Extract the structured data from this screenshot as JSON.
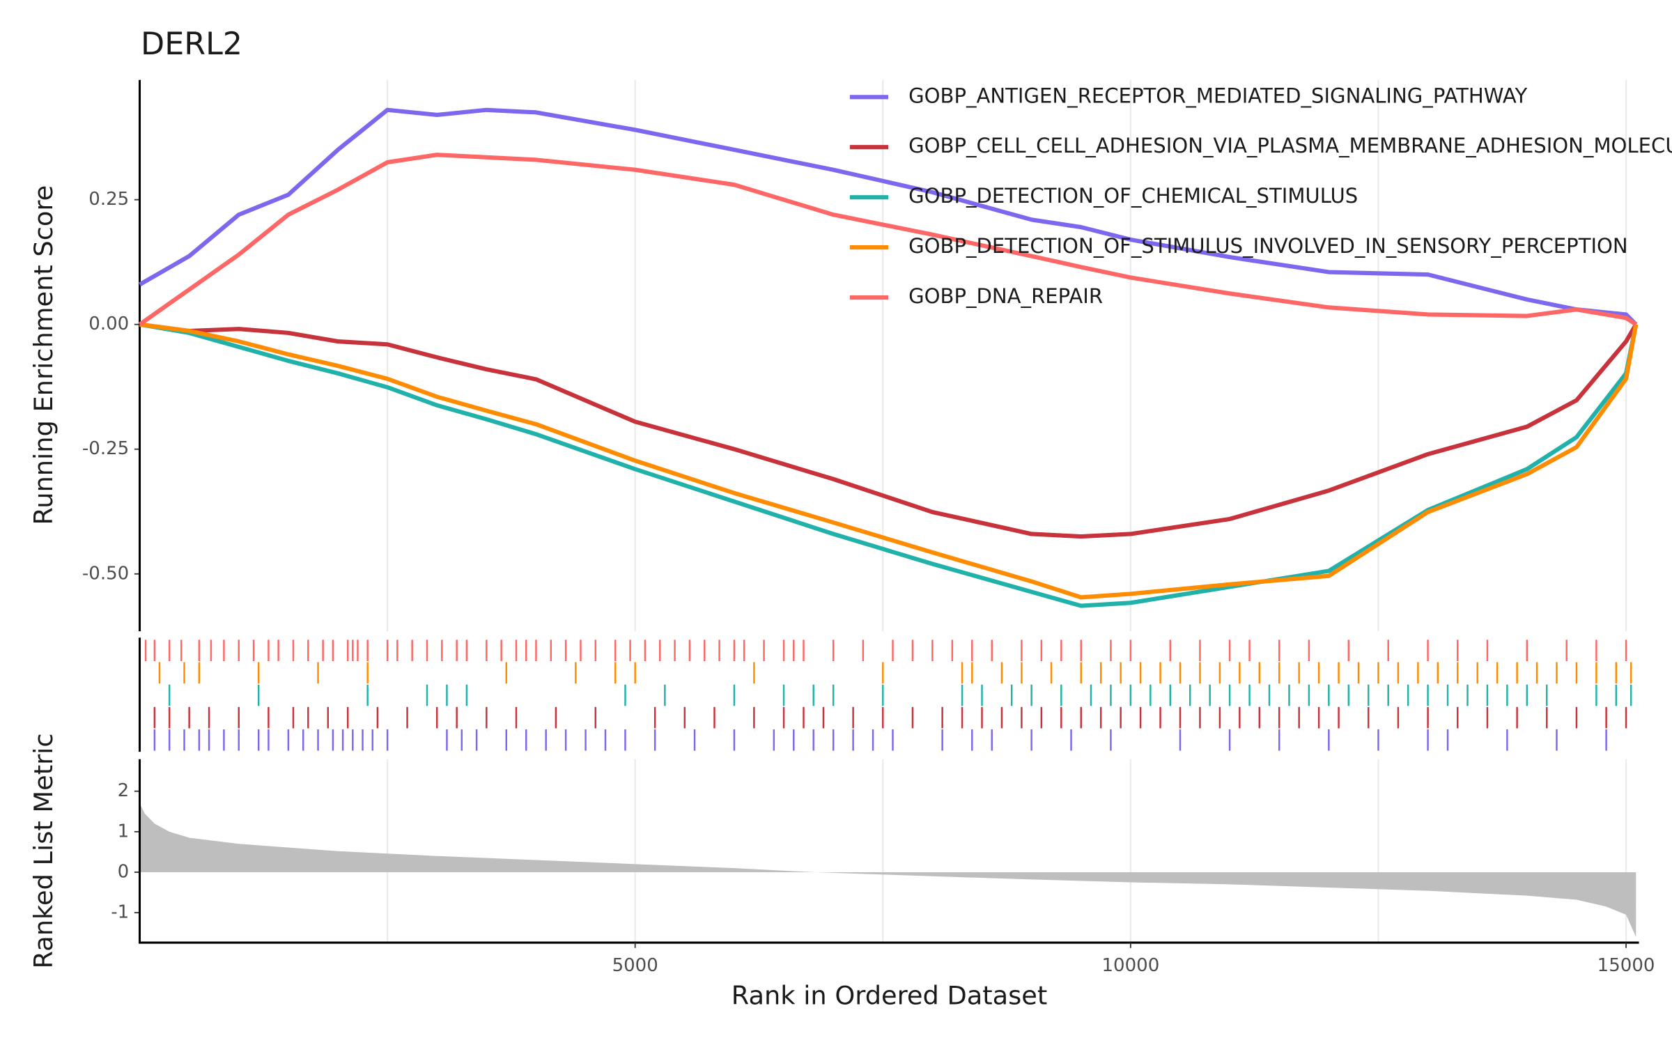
{
  "chart_data": [
    {
      "type": "line",
      "title": "DERL2",
      "ylabel": "Running Enrichment Score",
      "x": [
        0,
        500,
        1000,
        1500,
        2000,
        2500,
        3000,
        3500,
        4000,
        5000,
        6000,
        7000,
        8000,
        9000,
        9500,
        10000,
        11000,
        12000,
        13000,
        14000,
        14500,
        15000,
        15100
      ],
      "series": [
        {
          "name": "GOBP_ANTIGEN_RECEPTOR_MEDIATED_SIGNALING_PATHWAY",
          "color": "#7b68ee",
          "values": [
            0.08,
            0.137,
            0.22,
            0.26,
            0.35,
            0.43,
            0.42,
            0.43,
            0.425,
            0.39,
            0.35,
            0.31,
            0.265,
            0.21,
            0.195,
            0.17,
            0.135,
            0.105,
            0.1,
            0.05,
            0.03,
            0.02,
            0
          ]
        },
        {
          "name": "GOBP_CELL_CELL_ADHESION_VIA_PLASMA_MEMBRANE_ADHESION_MOLECULES",
          "color": "#c8323a",
          "values": [
            0,
            -0.013,
            -0.009,
            -0.017,
            -0.034,
            -0.04,
            -0.066,
            -0.09,
            -0.11,
            -0.195,
            -0.25,
            -0.31,
            -0.376,
            -0.42,
            -0.425,
            -0.42,
            -0.39,
            -0.333,
            -0.26,
            -0.205,
            -0.152,
            -0.034,
            0
          ]
        },
        {
          "name": "GOBP_DETECTION_OF_CHEMICAL_STIMULUS",
          "color": "#20b2aa",
          "values": [
            0,
            -0.017,
            -0.045,
            -0.073,
            -0.098,
            -0.126,
            -0.162,
            -0.19,
            -0.22,
            -0.29,
            -0.355,
            -0.42,
            -0.48,
            -0.536,
            -0.564,
            -0.558,
            -0.526,
            -0.494,
            -0.372,
            -0.29,
            -0.226,
            -0.098,
            0
          ]
        },
        {
          "name": "GOBP_DETECTION_OF_STIMULUS_INVOLVED_IN_SENSORY_PERCEPTION",
          "color": "#ff8c00",
          "values": [
            0,
            -0.013,
            -0.034,
            -0.06,
            -0.083,
            -0.109,
            -0.145,
            -0.173,
            -0.2,
            -0.273,
            -0.338,
            -0.397,
            -0.457,
            -0.515,
            -0.547,
            -0.54,
            -0.521,
            -0.504,
            -0.376,
            -0.3,
            -0.246,
            -0.109,
            0
          ]
        },
        {
          "name": "GOBP_DNA_REPAIR",
          "color": "#ff6666",
          "values": [
            0,
            0.07,
            0.14,
            0.22,
            0.27,
            0.325,
            0.34,
            0.335,
            0.33,
            0.31,
            0.28,
            0.22,
            0.18,
            0.137,
            0.115,
            0.094,
            0.062,
            0.034,
            0.02,
            0.017,
            0.03,
            0.013,
            0
          ]
        }
      ],
      "xlim": [
        0,
        15130
      ],
      "ylim": [
        -0.615,
        0.49
      ],
      "yticks": [
        0.25,
        {
          "value": 0,
          "label": "0.00"
        },
        -0.25,
        {
          "value": -0.5,
          "label": "-0.50"
        }
      ],
      "x_gridlines": [
        2500,
        5000,
        7500,
        10000,
        12500,
        15000
      ],
      "legend": "top-right"
    },
    {
      "type": "rug",
      "xlim": [
        0,
        15130
      ],
      "rows": [
        {
          "color": "#ff6666",
          "x": [
            60,
            150,
            300,
            420,
            600,
            720,
            850,
            1000,
            1150,
            1300,
            1400,
            1550,
            1700,
            1850,
            1950,
            2100,
            2150,
            2200,
            2300,
            2500,
            2600,
            2750,
            2900,
            3050,
            3200,
            3300,
            3500,
            3650,
            3800,
            3900,
            4000,
            4150,
            4300,
            4450,
            4600,
            4800,
            4950,
            5100,
            5250,
            5400,
            5550,
            5700,
            5850,
            6000,
            6100,
            6300,
            6500,
            6600,
            6700,
            7000,
            7300,
            7600,
            7800,
            8000,
            8200,
            8400,
            8600,
            8900,
            9100,
            9300,
            9500,
            9800,
            10000,
            10400,
            10700,
            11000,
            11200,
            11500,
            11800,
            12200,
            12600,
            13000,
            13300,
            13600,
            14000,
            14400,
            14700,
            15000
          ]
        },
        {
          "color": "#ff8c00",
          "x": [
            200,
            450,
            600,
            1200,
            1800,
            2300,
            3700,
            4400,
            4800,
            5000,
            6200,
            7500,
            8300,
            8400,
            8700,
            8900,
            9200,
            9500,
            9700,
            9900,
            10100,
            10300,
            10500,
            10700,
            10900,
            11100,
            11300,
            11500,
            11700,
            11900,
            12100,
            12300,
            12500,
            12700,
            12900,
            13100,
            13300,
            13500,
            13700,
            13900,
            14100,
            14300,
            14500,
            14700,
            14900,
            15050
          ]
        },
        {
          "color": "#20b2aa",
          "x": [
            300,
            1200,
            2300,
            2900,
            3100,
            3300,
            4900,
            5300,
            6000,
            6500,
            6800,
            7000,
            7500,
            8300,
            8500,
            8800,
            9000,
            9300,
            9600,
            9800,
            10000,
            10200,
            10400,
            10600,
            10800,
            11000,
            11200,
            11400,
            11600,
            11800,
            12000,
            12200,
            12400,
            12600,
            12800,
            13000,
            13200,
            13400,
            13600,
            13800,
            14000,
            14200,
            14700,
            14900,
            15050
          ]
        },
        {
          "color": "#c8323a",
          "x": [
            150,
            300,
            500,
            700,
            1000,
            1300,
            1550,
            1700,
            1900,
            2100,
            2400,
            2700,
            3000,
            3200,
            3500,
            3800,
            4200,
            4600,
            5200,
            5500,
            5800,
            6200,
            6500,
            6700,
            6900,
            7200,
            7500,
            7800,
            8100,
            8300,
            8500,
            8700,
            8900,
            9100,
            9300,
            9500,
            9700,
            9900,
            10100,
            10300,
            10500,
            10700,
            10900,
            11100,
            11300,
            11500,
            11700,
            11900,
            12100,
            12400,
            12700,
            13000,
            13300,
            13600,
            13900,
            14200,
            14500,
            14800,
            15000
          ]
        },
        {
          "color": "#7b68ee",
          "x": [
            150,
            300,
            450,
            600,
            700,
            850,
            1000,
            1200,
            1300,
            1500,
            1650,
            1800,
            1950,
            2050,
            2150,
            2250,
            2350,
            2500,
            3100,
            3250,
            3400,
            3700,
            3900,
            4100,
            4300,
            4500,
            4700,
            4900,
            5200,
            5600,
            6000,
            6400,
            6600,
            6800,
            7000,
            7200,
            7400,
            7600,
            8100,
            8400,
            8600,
            9000,
            9400,
            9800,
            10500,
            11000,
            11500,
            12000,
            12500,
            13000,
            13200,
            13800,
            14300,
            14800
          ]
        }
      ]
    },
    {
      "type": "area",
      "ylabel": "Ranked List Metric",
      "xlabel": "Rank in Ordered Dataset",
      "color": "#bebebe",
      "x": [
        0,
        50,
        150,
        300,
        500,
        1000,
        2000,
        3000,
        4000,
        5000,
        6000,
        6800,
        8000,
        9000,
        10000,
        11000,
        12000,
        13000,
        14000,
        14500,
        14800,
        15000,
        15100
      ],
      "values": [
        1.7,
        1.45,
        1.2,
        1.0,
        0.85,
        0.7,
        0.52,
        0.4,
        0.3,
        0.2,
        0.1,
        0,
        -0.1,
        -0.18,
        -0.25,
        -0.3,
        -0.38,
        -0.46,
        -0.58,
        -0.68,
        -0.85,
        -1.05,
        -1.6
      ],
      "xlim": [
        0,
        15130
      ],
      "ylim": [
        -1.74,
        2.79
      ],
      "yticks": [
        2,
        1,
        0,
        -1
      ],
      "xticks": [
        5000,
        10000,
        15000
      ],
      "x_gridlines": [
        2500,
        5000,
        7500,
        10000,
        12500,
        15000
      ]
    }
  ]
}
